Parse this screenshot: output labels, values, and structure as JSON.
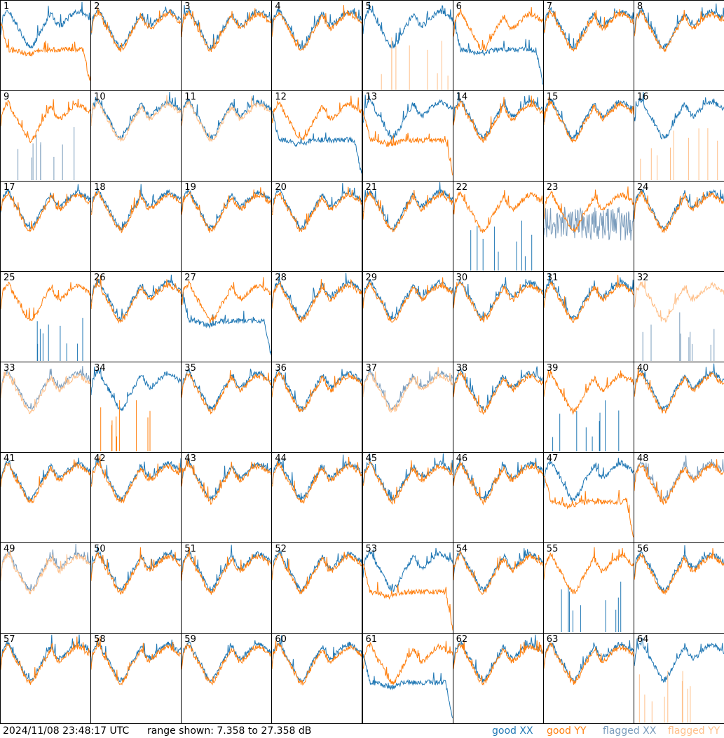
{
  "chart_data": {
    "type": "line",
    "layout": "8x8 grid of spectra, one panel per antenna",
    "y_range_db": [
      7.358,
      27.358
    ],
    "series_legend": [
      {
        "name": "good XX",
        "color": "#1f77b4"
      },
      {
        "name": "good YY",
        "color": "#ff7f0e"
      },
      {
        "name": "flagged XX",
        "color": "#7a9cbc"
      },
      {
        "name": "flagged YY",
        "color": "#ffc08a"
      }
    ],
    "panels": [
      {
        "n": "1",
        "xx": "good",
        "yy": "good",
        "xx_shape": "normal",
        "yy_shape": "low"
      },
      {
        "n": "2",
        "xx": "good",
        "yy": "good",
        "xx_shape": "normal",
        "yy_shape": "normal"
      },
      {
        "n": "3",
        "xx": "good",
        "yy": "good",
        "xx_shape": "normal",
        "yy_shape": "normal"
      },
      {
        "n": "4",
        "xx": "good",
        "yy": "good",
        "xx_shape": "normal",
        "yy_shape": "normal"
      },
      {
        "n": "5",
        "xx": "good",
        "yy": "flagged",
        "xx_shape": "normal",
        "yy_shape": "spikes"
      },
      {
        "n": "6",
        "xx": "good",
        "yy": "good",
        "xx_shape": "low",
        "yy_shape": "normal"
      },
      {
        "n": "7",
        "xx": "good",
        "yy": "good",
        "xx_shape": "normal",
        "yy_shape": "normal"
      },
      {
        "n": "8",
        "xx": "good",
        "yy": "good",
        "xx_shape": "normal",
        "yy_shape": "normal"
      },
      {
        "n": "9",
        "xx": "flagged",
        "yy": "good",
        "xx_shape": "spikes",
        "yy_shape": "normal"
      },
      {
        "n": "10",
        "xx": "good",
        "yy": "flagged",
        "xx_shape": "normal",
        "yy_shape": "normal"
      },
      {
        "n": "11",
        "xx": "good",
        "yy": "flagged",
        "xx_shape": "normal",
        "yy_shape": "normal"
      },
      {
        "n": "12",
        "xx": "good",
        "yy": "good",
        "xx_shape": "low",
        "yy_shape": "normal"
      },
      {
        "n": "13",
        "xx": "good",
        "yy": "good",
        "xx_shape": "normal",
        "yy_shape": "low"
      },
      {
        "n": "14",
        "xx": "good",
        "yy": "good",
        "xx_shape": "normal",
        "yy_shape": "normal"
      },
      {
        "n": "15",
        "xx": "good",
        "yy": "good",
        "xx_shape": "normal",
        "yy_shape": "normal"
      },
      {
        "n": "16",
        "xx": "good",
        "yy": "flagged",
        "xx_shape": "normal",
        "yy_shape": "spikes"
      },
      {
        "n": "17",
        "xx": "good",
        "yy": "good",
        "xx_shape": "normal",
        "yy_shape": "normal"
      },
      {
        "n": "18",
        "xx": "good",
        "yy": "good",
        "xx_shape": "normal",
        "yy_shape": "normal"
      },
      {
        "n": "19",
        "xx": "good",
        "yy": "good",
        "xx_shape": "normal",
        "yy_shape": "normal"
      },
      {
        "n": "20",
        "xx": "good",
        "yy": "good",
        "xx_shape": "normal",
        "yy_shape": "normal"
      },
      {
        "n": "21",
        "xx": "good",
        "yy": "good",
        "xx_shape": "normal",
        "yy_shape": "normal"
      },
      {
        "n": "22",
        "xx": "good",
        "yy": "good",
        "xx_shape": "spikes",
        "yy_shape": "normal"
      },
      {
        "n": "23",
        "xx": "flagged",
        "yy": "good",
        "xx_shape": "noise",
        "yy_shape": "normal"
      },
      {
        "n": "24",
        "xx": "good",
        "yy": "good",
        "xx_shape": "normal",
        "yy_shape": "normal"
      },
      {
        "n": "25",
        "xx": "good",
        "yy": "good",
        "xx_shape": "spikes",
        "yy_shape": "normal"
      },
      {
        "n": "26",
        "xx": "good",
        "yy": "good",
        "xx_shape": "normal",
        "yy_shape": "normal"
      },
      {
        "n": "27",
        "xx": "good",
        "yy": "good",
        "xx_shape": "low",
        "yy_shape": "normal"
      },
      {
        "n": "28",
        "xx": "good",
        "yy": "good",
        "xx_shape": "normal",
        "yy_shape": "normal"
      },
      {
        "n": "29",
        "xx": "good",
        "yy": "good",
        "xx_shape": "normal",
        "yy_shape": "normal"
      },
      {
        "n": "30",
        "xx": "good",
        "yy": "good",
        "xx_shape": "normal",
        "yy_shape": "normal"
      },
      {
        "n": "31",
        "xx": "good",
        "yy": "good",
        "xx_shape": "normal",
        "yy_shape": "normal"
      },
      {
        "n": "32",
        "xx": "flagged",
        "yy": "flagged",
        "xx_shape": "spikes",
        "yy_shape": "normal"
      },
      {
        "n": "33",
        "xx": "flagged",
        "yy": "flagged",
        "xx_shape": "normal",
        "yy_shape": "normal"
      },
      {
        "n": "34",
        "xx": "good",
        "yy": "good",
        "xx_shape": "normal",
        "yy_shape": "spikes"
      },
      {
        "n": "35",
        "xx": "good",
        "yy": "good",
        "xx_shape": "normal",
        "yy_shape": "normal"
      },
      {
        "n": "36",
        "xx": "good",
        "yy": "good",
        "xx_shape": "normal",
        "yy_shape": "normal"
      },
      {
        "n": "37",
        "xx": "flagged",
        "yy": "flagged",
        "xx_shape": "normal",
        "yy_shape": "normal"
      },
      {
        "n": "38",
        "xx": "good",
        "yy": "good",
        "xx_shape": "normal",
        "yy_shape": "normal"
      },
      {
        "n": "39",
        "xx": "good",
        "yy": "good",
        "xx_shape": "spikes",
        "yy_shape": "normal"
      },
      {
        "n": "40",
        "xx": "good",
        "yy": "good",
        "xx_shape": "normal",
        "yy_shape": "normal"
      },
      {
        "n": "41",
        "xx": "good",
        "yy": "good",
        "xx_shape": "normal",
        "yy_shape": "normal"
      },
      {
        "n": "42",
        "xx": "good",
        "yy": "good",
        "xx_shape": "normal",
        "yy_shape": "normal"
      },
      {
        "n": "43",
        "xx": "good",
        "yy": "good",
        "xx_shape": "normal",
        "yy_shape": "normal"
      },
      {
        "n": "44",
        "xx": "good",
        "yy": "good",
        "xx_shape": "normal",
        "yy_shape": "normal"
      },
      {
        "n": "45",
        "xx": "good",
        "yy": "good",
        "xx_shape": "normal",
        "yy_shape": "normal"
      },
      {
        "n": "46",
        "xx": "good",
        "yy": "good",
        "xx_shape": "normal",
        "yy_shape": "normal"
      },
      {
        "n": "47",
        "xx": "good",
        "yy": "good",
        "xx_shape": "normal",
        "yy_shape": "low"
      },
      {
        "n": "48",
        "xx": "flagged",
        "yy": "good",
        "xx_shape": "normal",
        "yy_shape": "normal"
      },
      {
        "n": "49",
        "xx": "flagged",
        "yy": "flagged",
        "xx_shape": "normal",
        "yy_shape": "normal"
      },
      {
        "n": "50",
        "xx": "good",
        "yy": "good",
        "xx_shape": "normal",
        "yy_shape": "normal"
      },
      {
        "n": "51",
        "xx": "good",
        "yy": "good",
        "xx_shape": "normal",
        "yy_shape": "normal"
      },
      {
        "n": "52",
        "xx": "good",
        "yy": "good",
        "xx_shape": "normal",
        "yy_shape": "normal"
      },
      {
        "n": "53",
        "xx": "good",
        "yy": "good",
        "xx_shape": "normal",
        "yy_shape": "low"
      },
      {
        "n": "54",
        "xx": "good",
        "yy": "good",
        "xx_shape": "normal",
        "yy_shape": "normal"
      },
      {
        "n": "55",
        "xx": "good",
        "yy": "good",
        "xx_shape": "spikes",
        "yy_shape": "normal"
      },
      {
        "n": "56",
        "xx": "good",
        "yy": "good",
        "xx_shape": "normal",
        "yy_shape": "normal"
      },
      {
        "n": "57",
        "xx": "good",
        "yy": "good",
        "xx_shape": "normal",
        "yy_shape": "normal"
      },
      {
        "n": "58",
        "xx": "good",
        "yy": "good",
        "xx_shape": "normal",
        "yy_shape": "normal"
      },
      {
        "n": "59",
        "xx": "good",
        "yy": "good",
        "xx_shape": "normal",
        "yy_shape": "normal"
      },
      {
        "n": "60",
        "xx": "good",
        "yy": "good",
        "xx_shape": "normal",
        "yy_shape": "normal"
      },
      {
        "n": "61",
        "xx": "good",
        "yy": "good",
        "xx_shape": "low",
        "yy_shape": "normal"
      },
      {
        "n": "62",
        "xx": "good",
        "yy": "good",
        "xx_shape": "normal",
        "yy_shape": "normal"
      },
      {
        "n": "63",
        "xx": "good",
        "yy": "good",
        "xx_shape": "normal",
        "yy_shape": "normal"
      },
      {
        "n": "64",
        "xx": "good",
        "yy": "flagged",
        "xx_shape": "normal",
        "yy_shape": "spikes"
      }
    ]
  },
  "footer": {
    "timestamp": "2024/11/08 23:48:17 UTC",
    "range_text": "range shown: 7.358 to 27.358 dB",
    "legend": {
      "good_xx": "good XX",
      "good_yy": "good YY",
      "flagged_xx": "flagged XX",
      "flagged_yy": "flagged YY"
    },
    "colors": {
      "good_xx": "#1f77b4",
      "good_yy": "#ff7f0e",
      "flagged_xx": "#7a9cbc",
      "flagged_yy": "#ffc08a"
    }
  }
}
